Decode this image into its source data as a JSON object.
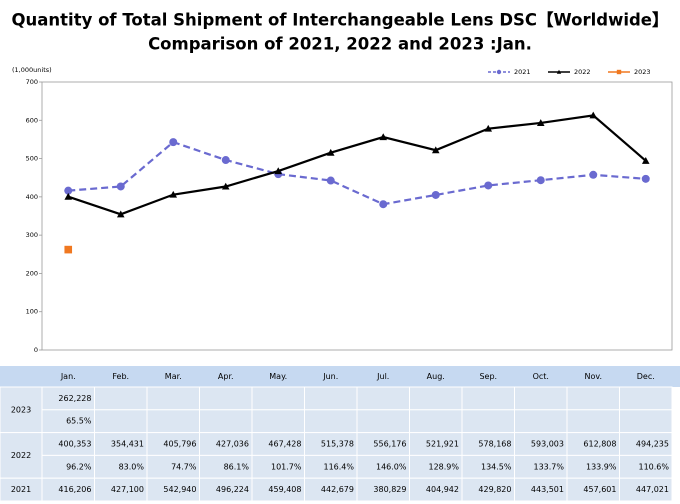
{
  "chart_data": {
    "type": "line",
    "title": "Quantity of Total Shipment of Interchangeable Lens DSC【Worldwide】",
    "subtitle": "Comparison of 2021, 2022 and 2023 :Jan.",
    "y_label": "(1,000units)",
    "categories": [
      "Jan.",
      "Feb.",
      "Mar.",
      "Apr.",
      "May.",
      "Jun.",
      "Jul.",
      "Aug.",
      "Sep.",
      "Oct.",
      "Nov.",
      "Dec."
    ],
    "ylim": [
      0,
      700
    ],
    "yticks": [
      0,
      100,
      200,
      300,
      400,
      500,
      600,
      700
    ],
    "legend": "top-right",
    "series": [
      {
        "name": "2021",
        "color": "#6a6ad0",
        "dashed": true,
        "marker": "circle",
        "values": [
          416.206,
          427.1,
          542.94,
          496.224,
          459.408,
          442.679,
          380.829,
          404.942,
          429.82,
          443.501,
          457.601,
          447.021
        ]
      },
      {
        "name": "2022",
        "color": "#000000",
        "dashed": false,
        "marker": "triangle",
        "values": [
          400.353,
          354.431,
          405.796,
          427.036,
          467.428,
          515.378,
          556.176,
          521.921,
          578.168,
          593.003,
          612.808,
          494.235
        ]
      },
      {
        "name": "2023",
        "color": "#f07820",
        "dashed": false,
        "marker": "square",
        "values": [
          262.228,
          null,
          null,
          null,
          null,
          null,
          null,
          null,
          null,
          null,
          null,
          null
        ]
      }
    ]
  },
  "table": {
    "groups": [
      {
        "label": "2023",
        "rows": [
          [
            "262,228",
            null,
            null,
            null,
            null,
            null,
            null,
            null,
            null,
            null,
            null,
            null
          ],
          [
            "65.5%",
            null,
            null,
            null,
            null,
            null,
            null,
            null,
            null,
            null,
            null,
            null
          ]
        ]
      },
      {
        "label": "2022",
        "rows": [
          [
            "400,353",
            "354,431",
            "405,796",
            "427,036",
            "467,428",
            "515,378",
            "556,176",
            "521,921",
            "578,168",
            "593,003",
            "612,808",
            "494,235"
          ],
          [
            "96.2%",
            "83.0%",
            "74.7%",
            "86.1%",
            "101.7%",
            "116.4%",
            "146.0%",
            "128.9%",
            "134.5%",
            "133.7%",
            "133.9%",
            "110.6%"
          ]
        ]
      },
      {
        "label": "2021",
        "rows": [
          [
            "416,206",
            "427,100",
            "542,940",
            "496,224",
            "459,408",
            "442,679",
            "380,829",
            "404,942",
            "429,820",
            "443,501",
            "457,601",
            "447,021"
          ]
        ]
      }
    ]
  }
}
